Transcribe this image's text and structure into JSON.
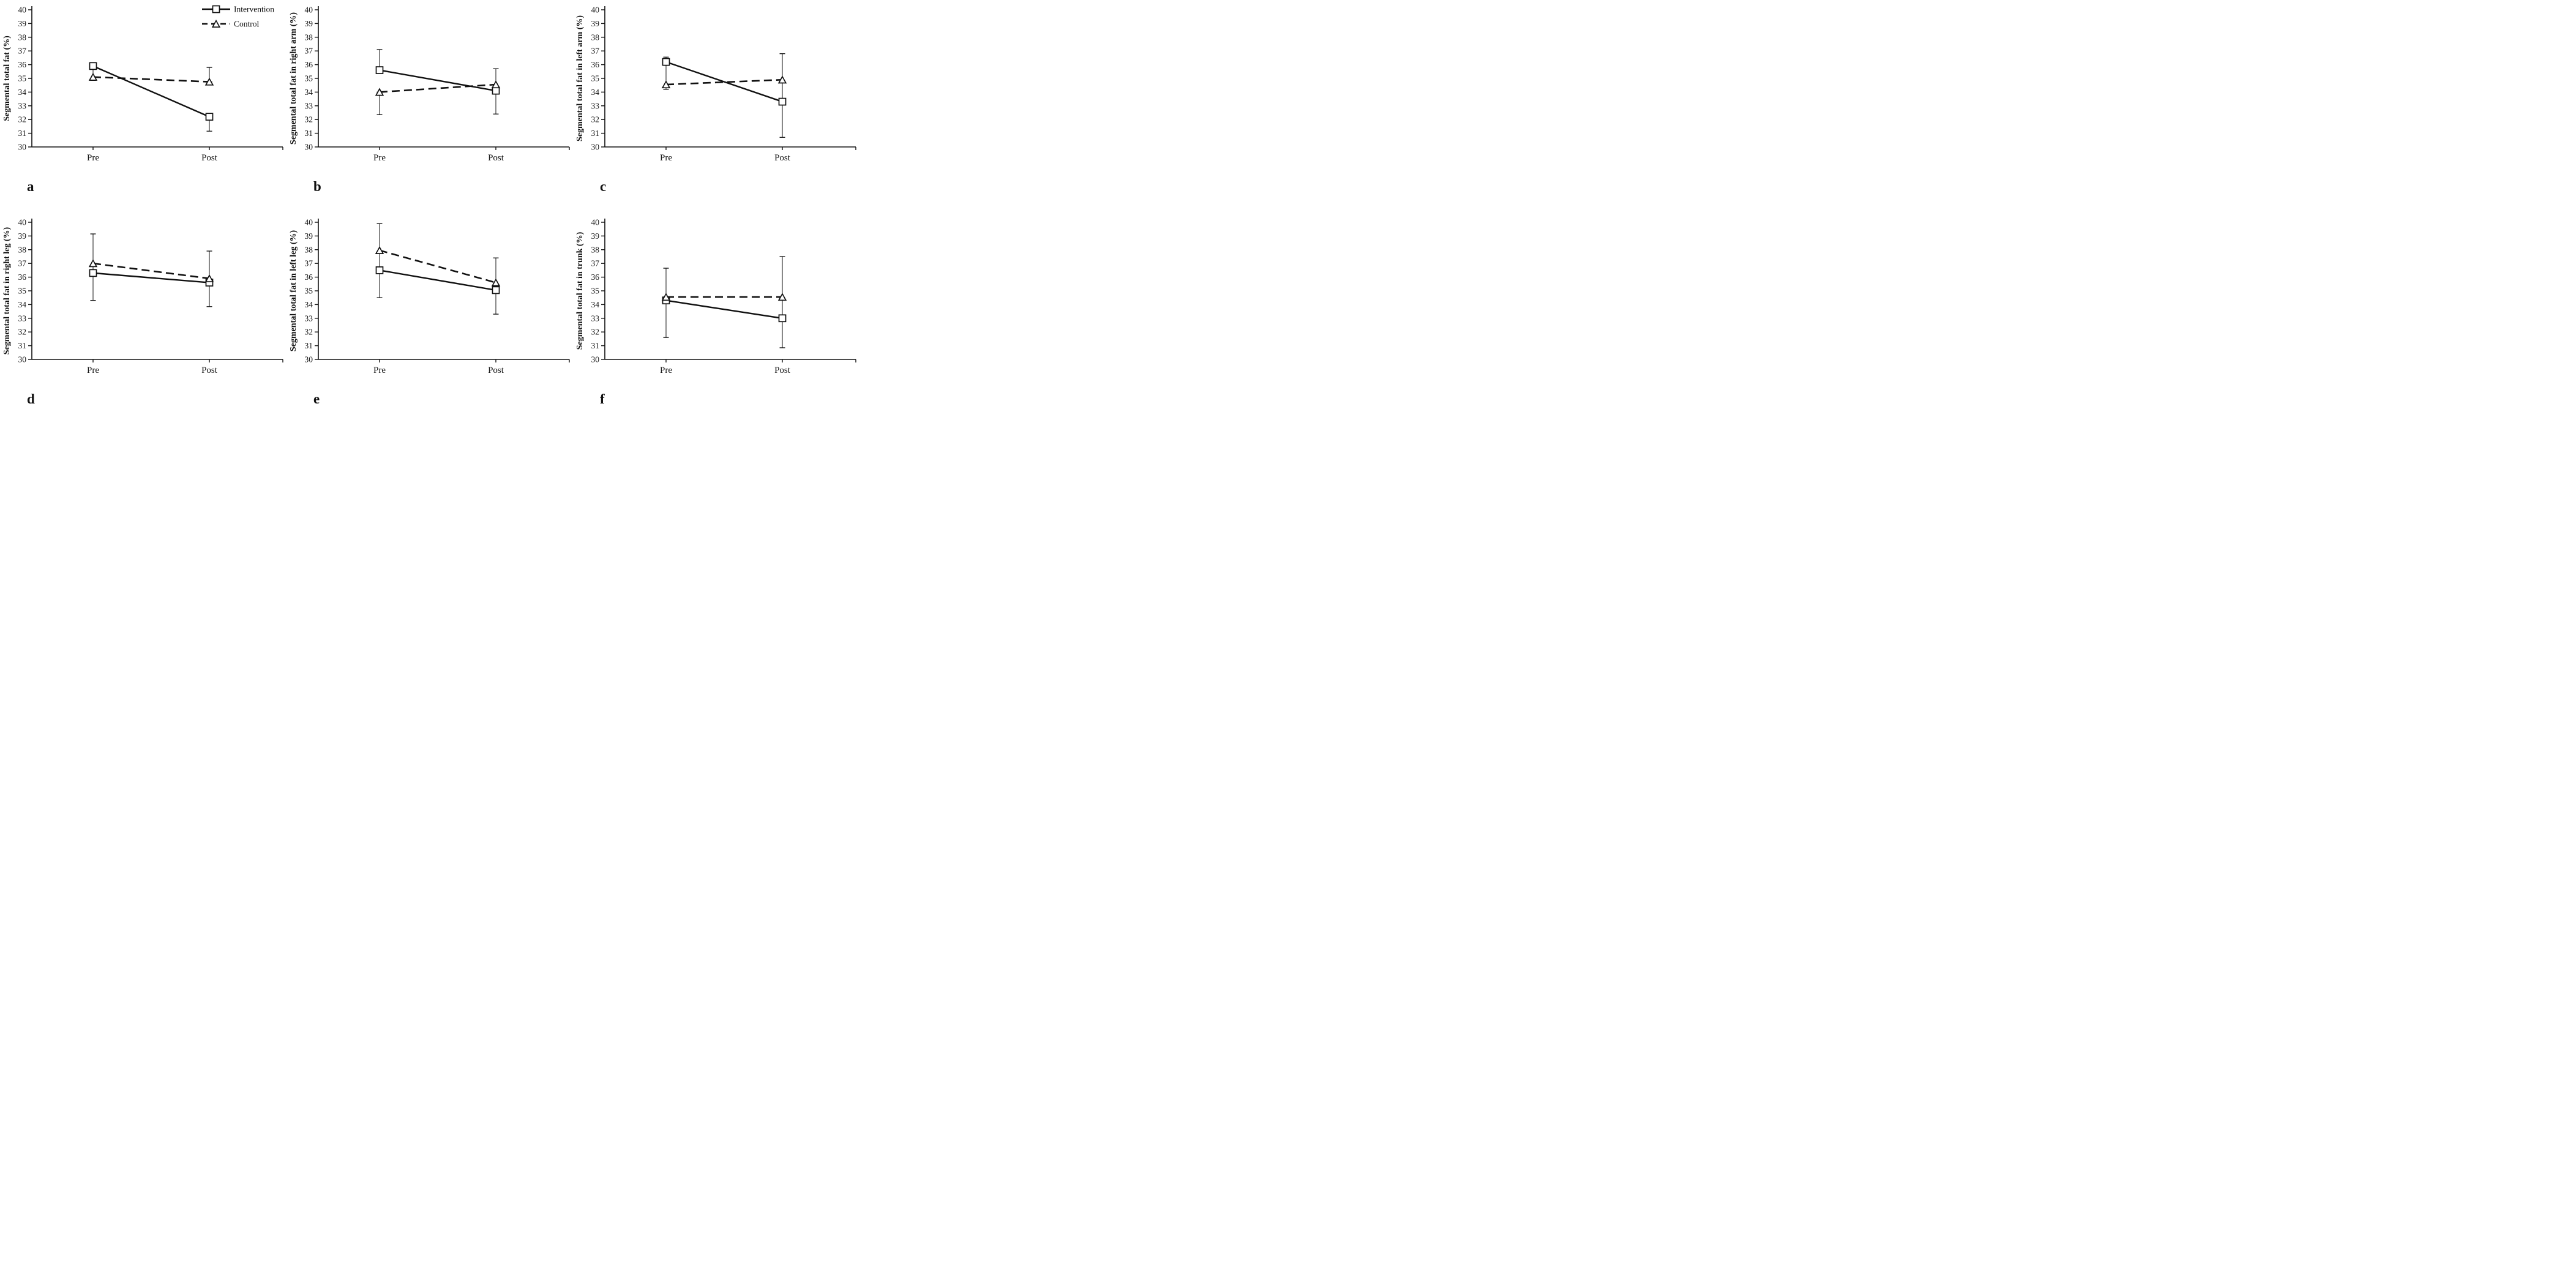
{
  "figure": {
    "background": "#ffffff",
    "ink_color": "#111111",
    "x_categories": [
      "Pre",
      "Post"
    ],
    "legend": {
      "items": [
        {
          "label": "Intervention",
          "marker": "square",
          "line_style": "solid"
        },
        {
          "label": "Control",
          "marker": "triangle",
          "line_style": "dashed"
        }
      ],
      "position": "top-right-of-first-panel"
    },
    "panel_letters": [
      "a",
      "b",
      "c",
      "d",
      "e",
      "f"
    ]
  },
  "chart_data": [
    {
      "id": "a",
      "panel_letter": "a",
      "type": "line",
      "categories": [
        "Pre",
        "Post"
      ],
      "xlabel": "",
      "ylabel": "Segmental total fat (%)",
      "ylim": [
        30,
        40
      ],
      "y_tick_step": 1,
      "grid": false,
      "legend_visible": true,
      "legend_entries": [
        "Intervention",
        "Control"
      ],
      "series": [
        {
          "name": "Intervention",
          "line_style": "solid",
          "marker": "square",
          "values": [
            35.9,
            32.2
          ],
          "error_bars": [
            [
              34.85,
              36.1
            ],
            [
              31.15,
              32.2
            ]
          ]
        },
        {
          "name": "Control",
          "line_style": "dashed",
          "marker": "triangle",
          "values": [
            35.1,
            34.75
          ],
          "error_bars": [
            null,
            [
              34.75,
              35.8
            ]
          ]
        }
      ]
    },
    {
      "id": "b",
      "panel_letter": "b",
      "type": "line",
      "categories": [
        "Pre",
        "Post"
      ],
      "xlabel": "",
      "ylabel": "Segmental total fat in right arm (%)",
      "ylim": [
        30,
        40
      ],
      "y_tick_step": 1,
      "grid": false,
      "legend_visible": false,
      "series": [
        {
          "name": "Intervention",
          "line_style": "solid",
          "marker": "square",
          "values": [
            35.6,
            34.1
          ],
          "error_bars": [
            [
              35.6,
              37.1
            ],
            [
              32.4,
              35.7
            ]
          ]
        },
        {
          "name": "Control",
          "line_style": "dashed",
          "marker": "triangle",
          "values": [
            34.0,
            34.55
          ],
          "error_bars": [
            [
              32.35,
              34.0
            ],
            null
          ]
        }
      ]
    },
    {
      "id": "c",
      "panel_letter": "c",
      "type": "line",
      "categories": [
        "Pre",
        "Post"
      ],
      "xlabel": "",
      "ylabel": "Segmental total fat in left arm (%)",
      "ylim": [
        30,
        40
      ],
      "y_tick_step": 1,
      "grid": false,
      "legend_visible": false,
      "series": [
        {
          "name": "Intervention",
          "line_style": "solid",
          "marker": "square",
          "values": [
            36.2,
            33.3
          ],
          "error_bars": [
            [
              34.2,
              36.55
            ],
            [
              30.7,
              36.8
            ]
          ]
        },
        {
          "name": "Control",
          "line_style": "dashed",
          "marker": "triangle",
          "values": [
            34.55,
            34.9
          ],
          "error_bars": [
            null,
            null
          ]
        }
      ]
    },
    {
      "id": "d",
      "panel_letter": "d",
      "type": "line",
      "categories": [
        "Pre",
        "Post"
      ],
      "xlabel": "",
      "ylabel": "Segmental total fat in right leg (%)",
      "ylim": [
        30,
        40
      ],
      "y_tick_step": 1,
      "grid": false,
      "legend_visible": false,
      "series": [
        {
          "name": "Intervention",
          "line_style": "solid",
          "marker": "square",
          "values": [
            36.3,
            35.6
          ],
          "error_bars": [
            [
              34.3,
              39.15
            ],
            [
              33.85,
              37.9
            ]
          ]
        },
        {
          "name": "Control",
          "line_style": "dashed",
          "marker": "triangle",
          "values": [
            37.0,
            35.9
          ],
          "error_bars": [
            null,
            null
          ]
        }
      ]
    },
    {
      "id": "e",
      "panel_letter": "e",
      "type": "line",
      "categories": [
        "Pre",
        "Post"
      ],
      "xlabel": "",
      "ylabel": "Segmental total fat in left leg (%)",
      "ylim": [
        30,
        40
      ],
      "y_tick_step": 1,
      "grid": false,
      "legend_visible": false,
      "series": [
        {
          "name": "Intervention",
          "line_style": "solid",
          "marker": "square",
          "values": [
            36.5,
            35.05
          ],
          "error_bars": [
            [
              34.5,
              39.9
            ],
            [
              33.3,
              37.4
            ]
          ]
        },
        {
          "name": "Control",
          "line_style": "dashed",
          "marker": "triangle",
          "values": [
            37.95,
            35.6
          ],
          "error_bars": [
            null,
            null
          ]
        }
      ]
    },
    {
      "id": "f",
      "panel_letter": "f",
      "type": "line",
      "categories": [
        "Pre",
        "Post"
      ],
      "xlabel": "",
      "ylabel": "Segmental total fat in trunk (%)",
      "ylim": [
        30,
        40
      ],
      "y_tick_step": 1,
      "grid": false,
      "legend_visible": false,
      "series": [
        {
          "name": "Intervention",
          "line_style": "solid",
          "marker": "square",
          "values": [
            34.3,
            33.0
          ],
          "error_bars": [
            [
              31.6,
              36.65
            ],
            [
              30.85,
              37.5
            ]
          ]
        },
        {
          "name": "Control",
          "line_style": "dashed",
          "marker": "triangle",
          "values": [
            34.55,
            34.55
          ],
          "error_bars": [
            null,
            null
          ]
        }
      ]
    }
  ]
}
